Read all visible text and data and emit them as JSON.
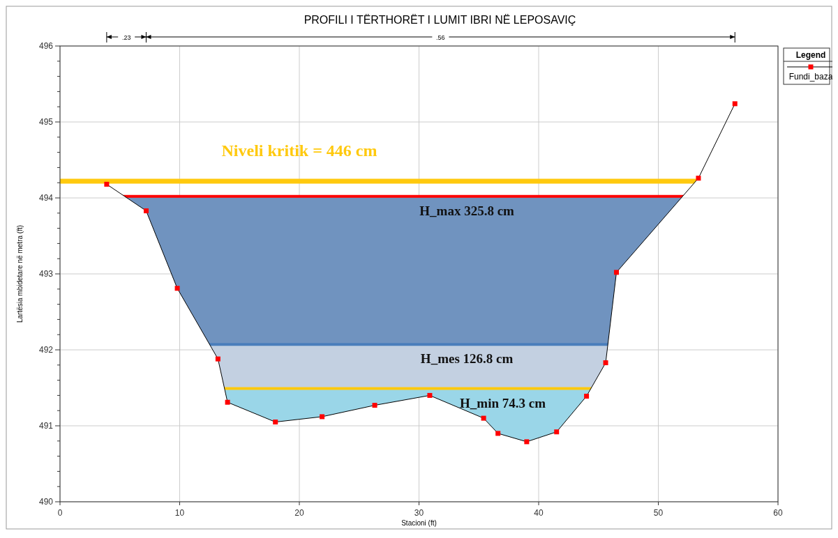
{
  "chart_data": {
    "type": "line",
    "title": "PROFILI I TËRTHORËT I LUMIT IBRI NË LEPOSAVIÇ",
    "xlabel": "Stacioni (ft)",
    "ylabel": "Lartësia mbidetare në metra (ft)",
    "legend_title": "Legend",
    "legend": "top right",
    "grid": true,
    "marker": "square",
    "line_style": "solid",
    "x": [
      3.9,
      7.2,
      9.8,
      13.2,
      14.0,
      18.0,
      21.9,
      26.3,
      30.9,
      35.4,
      36.6,
      39.0,
      41.5,
      44.0,
      45.6,
      46.5,
      53.35,
      56.4
    ],
    "series": [
      {
        "name": "Fundi_baza",
        "color": "#ff0000",
        "values": [
          494.18,
          493.83,
          492.81,
          491.88,
          491.31,
          491.05,
          491.12,
          491.27,
          491.4,
          491.1,
          490.9,
          490.79,
          490.92,
          491.39,
          491.83,
          493.02,
          494.26,
          495.24
        ]
      }
    ],
    "xlim": [
      0,
      60
    ],
    "xticks": [
      0,
      10,
      20,
      30,
      40,
      50,
      60
    ],
    "ylim": [
      490,
      496
    ],
    "yticks": [
      490,
      {
        "value": 490.2,
        "label": null
      },
      {
        "value": 490.4,
        "label": null
      },
      {
        "value": 490.6,
        "label": null
      },
      {
        "value": 490.8,
        "label": null
      },
      491,
      {
        "value": 491.2,
        "label": null
      },
      {
        "value": 491.4,
        "label": null
      },
      {
        "value": 491.6,
        "label": null
      },
      {
        "value": 491.8,
        "label": null
      },
      492,
      {
        "value": 492.2,
        "label": null
      },
      {
        "value": 492.4,
        "label": null
      },
      {
        "value": 492.6,
        "label": null
      },
      {
        "value": 492.8,
        "label": null
      },
      493,
      {
        "value": 493.2,
        "label": null
      },
      {
        "value": 493.4,
        "label": null
      },
      {
        "value": 493.6,
        "label": null
      },
      {
        "value": 493.8,
        "label": null
      },
      494,
      {
        "value": 494.2,
        "label": null
      },
      {
        "value": 494.4,
        "label": null
      },
      {
        "value": 494.6,
        "label": null
      },
      {
        "value": 494.8,
        "label": null
      },
      495,
      {
        "value": 495.2,
        "label": null
      },
      {
        "value": 495.4,
        "label": null
      },
      {
        "value": 495.6,
        "label": null
      },
      {
        "value": 495.8,
        "label": null
      },
      496
    ],
    "bands": [
      {
        "axis": "y",
        "from": 492.07,
        "to": 494.02,
        "label": "H_max 325.8 cm",
        "color": "#7093bf"
      },
      {
        "axis": "y",
        "from": 491.49,
        "to": 492.07,
        "label": "H_mes 126.8 cm",
        "color": "#c3d0e1"
      },
      {
        "axis": "y",
        "from": 490,
        "to": 491.49,
        "label": "H_min 74.3 cm",
        "color": "#9ad6e8"
      }
    ],
    "ref_lines": [
      {
        "axis": "y",
        "value": 494.22,
        "color": "#ffc90e"
      },
      {
        "axis": "y",
        "value": 494.02,
        "color": "#ff0000"
      },
      {
        "axis": "y",
        "value": 492.07,
        "color": "#4a7ebb"
      },
      {
        "axis": "y",
        "value": 491.49,
        "color": "#ffc90e"
      }
    ],
    "annotations": [
      ".23",
      ".56",
      "Niveli kritik = 446 cm"
    ]
  }
}
